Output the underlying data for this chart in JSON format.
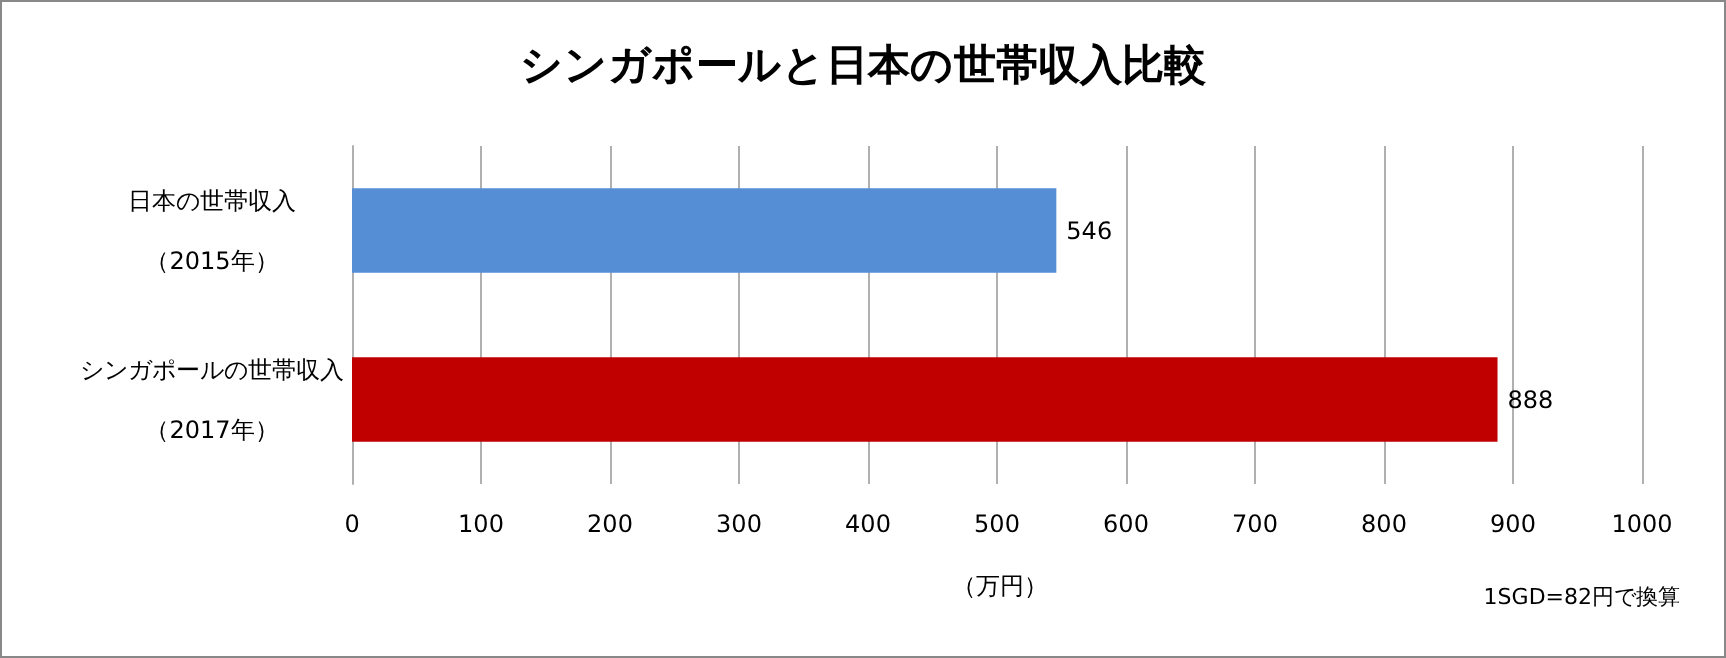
{
  "chart_data": {
    "type": "bar",
    "orientation": "horizontal",
    "title": "シンガポールと日本の世帯収入比較",
    "categories": [
      "日本の世帯収入（2015年）",
      "シンガポールの世帯収入（2017年）"
    ],
    "values": [
      546,
      888
    ],
    "colors": [
      "#558ed5",
      "#c00000"
    ],
    "xlim": [
      0,
      1000
    ],
    "xticks": [
      0,
      100,
      200,
      300,
      400,
      500,
      600,
      700,
      800,
      900,
      1000
    ],
    "xlabel": "（万円）",
    "annotations": [
      "1SGD=82円で換算"
    ],
    "grid": "x",
    "data_labels": true
  }
}
